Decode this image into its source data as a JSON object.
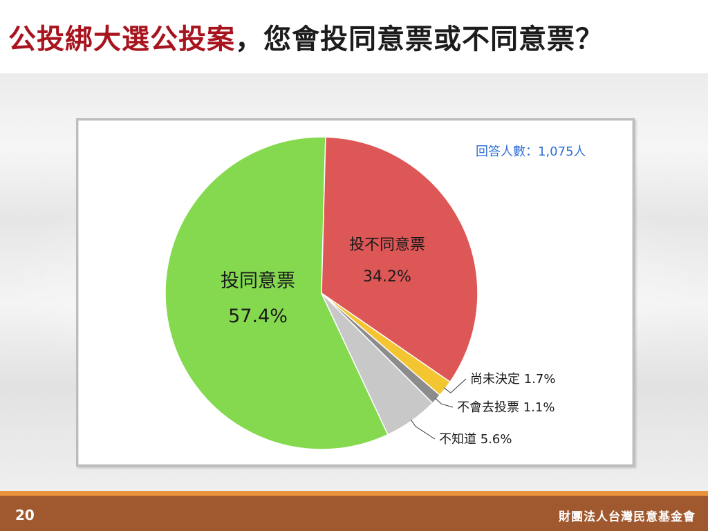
{
  "slide": {
    "title_highlight": "公投綁大選公投案",
    "title_rest": "，您會投同意票或不同意票？",
    "page_number": "20",
    "organization": "財團法人台灣民意基金會"
  },
  "chart_data": {
    "type": "pie",
    "note": "回答人數：1,075人",
    "slices": [
      {
        "label": "投同意票",
        "value": 57.4,
        "value_label": "57.4%",
        "color": "#84d94f"
      },
      {
        "label": "投不同意票",
        "value": 34.2,
        "value_label": "34.2%",
        "color": "#de5757"
      },
      {
        "label": "尚未決定",
        "value": 1.7,
        "value_label": "1.7%",
        "color": "#f2c531"
      },
      {
        "label": "不會去投票",
        "value": 1.1,
        "value_label": "1.1%",
        "color": "#8c8c8c"
      },
      {
        "label": "不知道",
        "value": 5.6,
        "value_label": "5.6%",
        "color": "#c8c8c8"
      }
    ],
    "note_color": "#2f6fd6"
  }
}
